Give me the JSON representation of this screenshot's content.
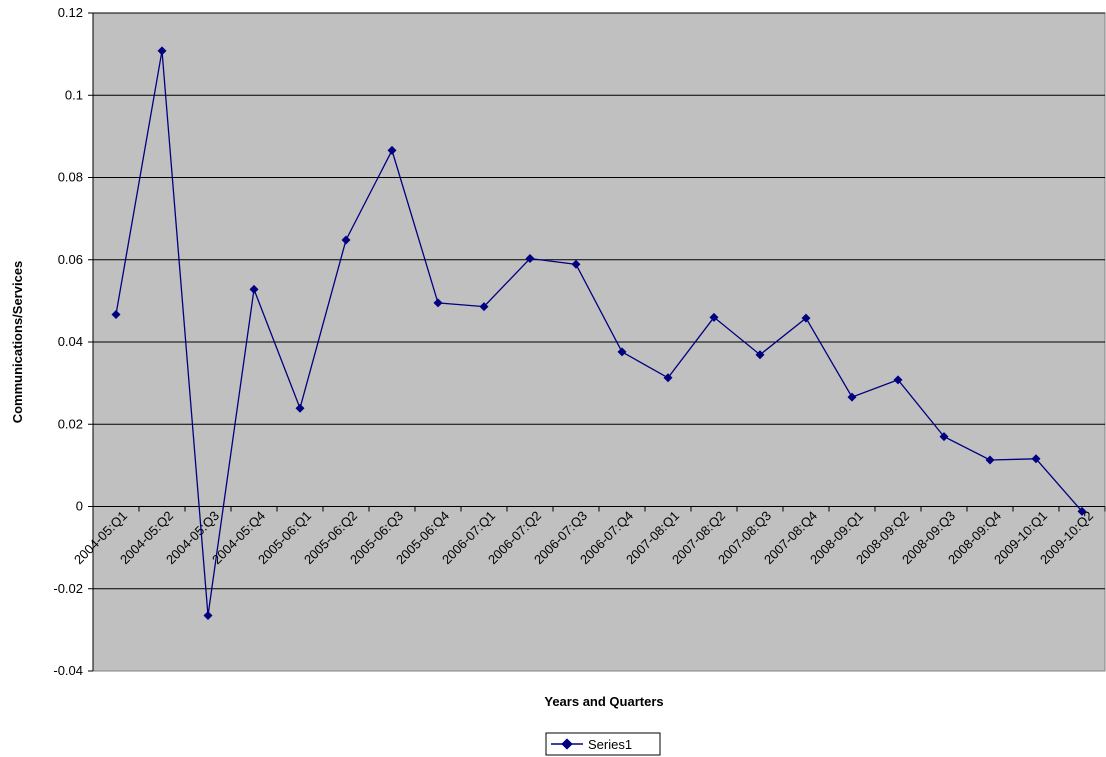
{
  "chart_data": {
    "type": "line",
    "title": "",
    "xlabel": "Years and Quarters",
    "ylabel": "Communications/Services",
    "ylim": [
      -0.04,
      0.12
    ],
    "yticks": [
      -0.04,
      -0.02,
      0,
      0.02,
      0.04,
      0.06,
      0.08,
      0.1,
      0.12
    ],
    "ytick_labels": [
      "-0.04",
      "-0.02",
      "0",
      "0.02",
      "0.04",
      "0.06",
      "0.08",
      "0.1",
      "0.12"
    ],
    "grid": true,
    "legend": "bottom",
    "categories": [
      "2004-05:Q1",
      "2004-05:Q2",
      "2004-05:Q3",
      "2004-05:Q4",
      "2005-06:Q1",
      "2005-06:Q2",
      "2005-06:Q3",
      "2005-06:Q4",
      "2006-07:Q1",
      "2006-07:Q2",
      "2006-07:Q3",
      "2006-07:Q4",
      "2007-08:Q1",
      "2007-08:Q2",
      "2007-08:Q3",
      "2007-08:Q4",
      "2008-09:Q1",
      "2008-09:Q2",
      "2008-09:Q3",
      "2008-09:Q4",
      "2009-10:Q1",
      "2009-10:Q2"
    ],
    "series": [
      {
        "name": "Series1",
        "color": "#000080",
        "values": [
          0.0467,
          0.1108,
          -0.0265,
          0.0528,
          0.0239,
          0.0648,
          0.0866,
          0.0495,
          0.0486,
          0.0603,
          0.0589,
          0.0376,
          0.0313,
          0.046,
          0.0369,
          0.0458,
          0.0266,
          0.0308,
          0.017,
          0.0113,
          0.0116,
          -0.0012
        ]
      }
    ],
    "colors": {
      "plot_background": "#c0c0c0",
      "gridline": "#000000",
      "line": "#000080"
    }
  }
}
